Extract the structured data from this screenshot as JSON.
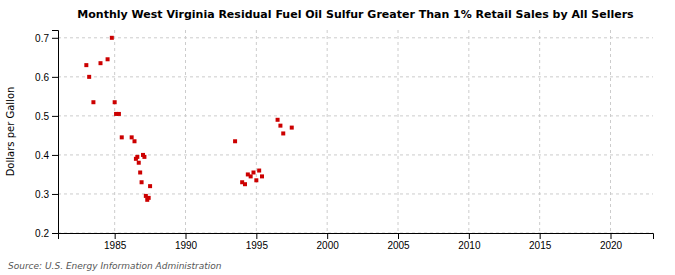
{
  "chart_data": {
    "type": "scatter",
    "title": "Monthly West Virginia Residual Fuel Oil Sulfur Greater Than 1% Retail Sales by All Sellers",
    "ylabel": "Dollars per Gallon",
    "source": "Source: U.S. Energy Information Administration",
    "x": [
      1983.0,
      1983.2,
      1983.5,
      1984.0,
      1984.5,
      1984.8,
      1985.0,
      1985.1,
      1985.3,
      1985.5,
      1986.2,
      1986.4,
      1986.5,
      1986.6,
      1986.7,
      1986.8,
      1986.9,
      1987.0,
      1987.1,
      1987.2,
      1987.3,
      1987.4,
      1987.5,
      1993.5,
      1994.0,
      1994.2,
      1994.4,
      1994.6,
      1994.8,
      1995.0,
      1995.2,
      1995.4,
      1996.5,
      1996.7,
      1996.9,
      1997.5
    ],
    "values": [
      0.63,
      0.6,
      0.535,
      0.635,
      0.645,
      0.7,
      0.535,
      0.505,
      0.505,
      0.445,
      0.445,
      0.435,
      0.39,
      0.395,
      0.38,
      0.355,
      0.33,
      0.4,
      0.395,
      0.295,
      0.285,
      0.29,
      0.32,
      0.435,
      0.33,
      0.325,
      0.35,
      0.345,
      0.355,
      0.335,
      0.36,
      0.345,
      0.49,
      0.475,
      0.455,
      0.47
    ],
    "color": "#cc0000",
    "marker": "square",
    "xlim": [
      1981,
      2023
    ],
    "ylim": [
      0.2,
      0.72
    ],
    "xticks": [
      1985,
      1990,
      1995,
      2000,
      2005,
      2010,
      2015,
      2020
    ],
    "yticks": [
      0.2,
      0.3,
      0.4,
      0.5,
      0.6,
      0.7
    ],
    "grid": true
  }
}
